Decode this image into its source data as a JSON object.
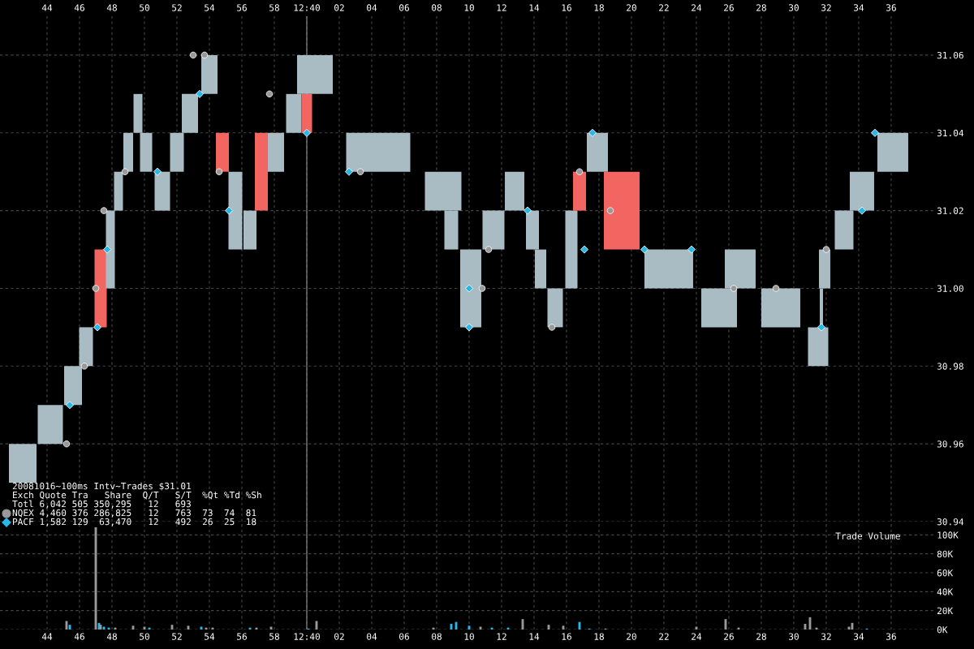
{
  "chart_data": [
    {
      "type": "bar",
      "annotations": [
        "20081016~100ms Intv~Trades $31.01",
        "Exch Quote Tra   Share  Q/T   S/T  %Qt %Td %Sh",
        "Totl 6,042 505 350,295   12   693",
        "4,460 376 286,825   12   763  73  74  81",
        "1,582 129  63,470   12   492  26  25  18"
      ],
      "series": [
        {
          "type": "bar",
          "x": [
            "2008-10-16T12:39:42.5",
            "2008-10-16T12:39:44.2",
            "2008-10-16T12:39:45.6",
            "2008-10-16T12:39:46.4",
            "2008-10-16T12:39:47.3",
            "2008-10-16T12:39:47.9",
            "2008-10-16T12:39:48.4",
            "2008-10-16T12:39:49.0",
            "2008-10-16T12:39:49.6",
            "2008-10-16T12:39:50.1",
            "2008-10-16T12:39:51.1",
            "2008-10-16T12:39:52.0",
            "2008-10-16T12:39:52.8",
            "2008-10-16T12:39:54.0",
            "2008-10-16T12:39:54.8",
            "2008-10-16T12:39:55.6",
            "2008-10-16T12:39:56.5",
            "2008-10-16T12:39:57.2",
            "2008-10-16T12:39:58.1",
            "2008-10-16T12:39:59.2",
            "2008-10-16T12:40:00.0",
            "2008-10-16T12:40:00.5",
            "2008-10-16T12:40:04.4",
            "2008-10-16T12:40:08.4",
            "2008-10-16T12:40:08.9",
            "2008-10-16T12:40:10.1",
            "2008-10-16T12:40:11.5",
            "2008-10-16T12:40:12.8",
            "2008-10-16T12:40:13.9",
            "2008-10-16T12:40:14.4",
            "2008-10-16T12:40:15.3",
            "2008-10-16T12:40:16.3",
            "2008-10-16T12:40:16.8",
            "2008-10-16T12:40:17.9",
            "2008-10-16T12:40:19.4",
            "2008-10-16T12:40:22.3",
            "2008-10-16T12:40:25.4",
            "2008-10-16T12:40:26.7",
            "2008-10-16T12:40:29.2",
            "2008-10-16T12:40:31.5",
            "2008-10-16T12:40:31.7",
            "2008-10-16T12:40:31.9",
            "2008-10-16T12:40:33.1",
            "2008-10-16T12:40:34.2",
            "2008-10-16T12:40:36.1"
          ],
          "base": [
            30.95,
            30.96,
            30.97,
            30.98,
            30.99,
            31.0,
            31.02,
            31.03,
            31.04,
            31.03,
            31.02,
            31.03,
            31.04,
            31.05,
            31.03,
            31.01,
            31.01,
            31.02,
            31.03,
            31.04,
            31.04,
            31.05,
            31.03,
            31.02,
            31.01,
            30.99,
            31.01,
            31.02,
            31.01,
            31.0,
            30.99,
            31.0,
            31.02,
            31.03,
            31.01,
            31.0,
            30.99,
            31.0,
            30.99,
            30.98,
            30.99,
            31.0,
            31.01,
            31.02,
            31.03
          ],
          "values": [
            0.01,
            0.01,
            0.01,
            0.01,
            0.02,
            0.02,
            0.01,
            0.01,
            0.01,
            0.01,
            0.01,
            0.01,
            0.01,
            0.01,
            0.01,
            0.02,
            0.01,
            0.02,
            0.01,
            0.01,
            0.01,
            0.01,
            0.01,
            0.01,
            0.01,
            0.02,
            0.01,
            0.01,
            0.01,
            0.01,
            0.01,
            0.02,
            0.01,
            0.01,
            0.02,
            0.01,
            0.01,
            0.01,
            0.01,
            0.01,
            0.01,
            0.01,
            0.01,
            0.01,
            0.01
          ],
          "colors": [
            "#a9bcc4",
            "#a9bcc4",
            "#a9bcc4",
            "#a9bcc4",
            "#f26560",
            "#a9bcc4",
            "#a9bcc4",
            "#a9bcc4",
            "#a9bcc4",
            "#a9bcc4",
            "#a9bcc4",
            "#a9bcc4",
            "#a9bcc4",
            "#a9bcc4",
            "#f26560",
            "#a9bcc4",
            "#a9bcc4",
            "#f26560",
            "#a9bcc4",
            "#a9bcc4",
            "#f26560",
            "#a9bcc4",
            "#a9bcc4",
            "#a9bcc4",
            "#a9bcc4",
            "#a9bcc4",
            "#a9bcc4",
            "#a9bcc4",
            "#a9bcc4",
            "#a9bcc4",
            "#a9bcc4",
            "#a9bcc4",
            "#f26560",
            "#a9bcc4",
            "#f26560",
            "#a9bcc4",
            "#a9bcc4",
            "#a9bcc4",
            "#a9bcc4",
            "#a9bcc4",
            "#a9bcc4",
            "#a9bcc4",
            "#a9bcc4",
            "#a9bcc4",
            "#a9bcc4"
          ]
        },
        {
          "type": "scatter",
          "name": "NQEX",
          "color": "#999999",
          "marker": "circle",
          "x": [
            "2008-10-16T12:39:45.2",
            "2008-10-16T12:39:46.3",
            "2008-10-16T12:39:47.0",
            "2008-10-16T12:39:47.5",
            "2008-10-16T12:39:48.8",
            "2008-10-16T12:39:53.0",
            "2008-10-16T12:39:53.7",
            "2008-10-16T12:39:54.6",
            "2008-10-16T12:39:57.7",
            "2008-10-16T12:40:03.3",
            "2008-10-16T12:40:10.8",
            "2008-10-16T12:40:11.2",
            "2008-10-16T12:40:15.1",
            "2008-10-16T12:40:16.8",
            "2008-10-16T12:40:18.7",
            "2008-10-16T12:40:26.3",
            "2008-10-16T12:40:28.9",
            "2008-10-16T12:40:32.0"
          ],
          "values": [
            30.96,
            30.98,
            31.0,
            31.02,
            31.03,
            31.06,
            31.06,
            31.03,
            31.05,
            31.03,
            31.0,
            31.01,
            30.99,
            31.03,
            31.02,
            31.0,
            31.0,
            31.01
          ]
        },
        {
          "type": "scatter",
          "name": "PACF",
          "color": "#29b6e8",
          "marker": "diamond",
          "x": [
            "2008-10-16T12:39:45.4",
            "2008-10-16T12:39:47.1",
            "2008-10-16T12:39:47.7",
            "2008-10-16T12:39:50.8",
            "2008-10-16T12:39:53.4",
            "2008-10-16T12:39:55.2",
            "2008-10-16T12:40:00.0",
            "2008-10-16T12:40:02.6",
            "2008-10-16T12:40:10.0",
            "2008-10-16T12:40:10.0",
            "2008-10-16T12:40:13.6",
            "2008-10-16T12:40:17.1",
            "2008-10-16T12:40:17.6",
            "2008-10-16T12:40:20.8",
            "2008-10-16T12:40:23.7",
            "2008-10-16T12:40:31.7",
            "2008-10-16T12:40:34.2",
            "2008-10-16T12:40:35.0"
          ],
          "values": [
            30.97,
            30.99,
            31.01,
            31.03,
            31.05,
            31.02,
            31.04,
            31.03,
            31.0,
            30.99,
            31.02,
            31.01,
            31.04,
            31.01,
            31.01,
            30.99,
            31.02,
            31.04
          ]
        }
      ],
      "xlim": [
        "2008-10-16T12:39:41.1",
        "2008-10-16T12:40:38.6"
      ],
      "ylim": [
        30.94,
        31.07
      ],
      "xticks": [
        {
          "value": "2008-10-16T12:39:44",
          "label": "44"
        },
        {
          "value": "2008-10-16T12:39:46",
          "label": "46"
        },
        {
          "value": "2008-10-16T12:39:48",
          "label": "48"
        },
        {
          "value": "2008-10-16T12:39:50",
          "label": "50"
        },
        {
          "value": "2008-10-16T12:39:52",
          "label": "52"
        },
        {
          "value": "2008-10-16T12:39:54",
          "label": "54"
        },
        {
          "value": "2008-10-16T12:39:56",
          "label": "56"
        },
        {
          "value": "2008-10-16T12:39:58",
          "label": "58"
        },
        {
          "value": "2008-10-16T12:40:00",
          "label": "12:40"
        },
        {
          "value": "2008-10-16T12:40:02",
          "label": "02"
        },
        {
          "value": "2008-10-16T12:40:04",
          "label": "04"
        },
        {
          "value": "2008-10-16T12:40:06",
          "label": "06"
        },
        {
          "value": "2008-10-16T12:40:08",
          "label": "08"
        },
        {
          "value": "2008-10-16T12:40:10",
          "label": "10"
        },
        {
          "value": "2008-10-16T12:40:12",
          "label": "12"
        },
        {
          "value": "2008-10-16T12:40:14",
          "label": "14"
        },
        {
          "value": "2008-10-16T12:40:16",
          "label": "16"
        },
        {
          "value": "2008-10-16T12:40:18",
          "label": "18"
        },
        {
          "value": "2008-10-16T12:40:20",
          "label": "20"
        },
        {
          "value": "2008-10-16T12:40:22",
          "label": "22"
        },
        {
          "value": "2008-10-16T12:40:24",
          "label": "24"
        },
        {
          "value": "2008-10-16T12:40:26",
          "label": "26"
        },
        {
          "value": "2008-10-16T12:40:28",
          "label": "28"
        },
        {
          "value": "2008-10-16T12:40:30",
          "label": "30"
        },
        {
          "value": "2008-10-16T12:40:32",
          "label": "32"
        },
        {
          "value": "2008-10-16T12:40:34",
          "label": "34"
        },
        {
          "value": "2008-10-16T12:40:36",
          "label": "36"
        }
      ],
      "yticks": [
        30.94,
        30.96,
        30.98,
        {
          "value": 31.0,
          "label": "31.00"
        },
        31.02,
        31.04,
        31.06
      ],
      "grid": true,
      "legend": "bottom left",
      "ref_lines": [
        {
          "axis": "x",
          "value": "2008-10-16T12:40:00",
          "color": "#777777"
        }
      ]
    },
    {
      "type": "bar",
      "title": "Trade Volume",
      "x": [
        "2008-10-16T12:39:45.2",
        "2008-10-16T12:39:45.4",
        "2008-10-16T12:39:47.0",
        "2008-10-16T12:39:47.2",
        "2008-10-16T12:39:47.3",
        "2008-10-16T12:39:47.5",
        "2008-10-16T12:39:47.8",
        "2008-10-16T12:39:48.2",
        "2008-10-16T12:39:49.3",
        "2008-10-16T12:39:50.0",
        "2008-10-16T12:39:50.3",
        "2008-10-16T12:39:51.7",
        "2008-10-16T12:39:52.7",
        "2008-10-16T12:39:53.5",
        "2008-10-16T12:39:53.8",
        "2008-10-16T12:39:54.2",
        "2008-10-16T12:39:56.5",
        "2008-10-16T12:39:56.9",
        "2008-10-16T12:39:57.8",
        "2008-10-16T12:40:00.1",
        "2008-10-16T12:40:00.6",
        "2008-10-16T12:40:07.8",
        "2008-10-16T12:40:08.9",
        "2008-10-16T12:40:09.2",
        "2008-10-16T12:40:10.0",
        "2008-10-16T12:40:10.7",
        "2008-10-16T12:40:11.4",
        "2008-10-16T12:40:12.4",
        "2008-10-16T12:40:13.3",
        "2008-10-16T12:40:14.9",
        "2008-10-16T12:40:15.8",
        "2008-10-16T12:40:16.8",
        "2008-10-16T12:40:17.4",
        "2008-10-16T12:40:18.4",
        "2008-10-16T12:40:24.0",
        "2008-10-16T12:40:25.8",
        "2008-10-16T12:40:26.6",
        "2008-10-16T12:40:30.7",
        "2008-10-16T12:40:31.0",
        "2008-10-16T12:40:31.4",
        "2008-10-16T12:40:33.4",
        "2008-10-16T12:40:33.6",
        "2008-10-16T12:40:34.5"
      ],
      "values": [
        9000,
        5000,
        108000,
        7000,
        5000,
        3000,
        2000,
        2000,
        4000,
        3000,
        2000,
        5000,
        4000,
        3000,
        2000,
        2000,
        2000,
        2000,
        3000,
        1000,
        9000,
        2000,
        6000,
        8000,
        4000,
        3000,
        2000,
        2000,
        11000,
        5000,
        4000,
        8000,
        1000,
        1000,
        3000,
        11000,
        2000,
        6000,
        13000,
        2000,
        3000,
        7000,
        1000
      ],
      "colors": [
        "#999999",
        "#29b6e8",
        "#999999",
        "#29b6e8",
        "#999999",
        "#29b6e8",
        "#29b6e8",
        "#999999",
        "#999999",
        "#999999",
        "#29b6e8",
        "#999999",
        "#999999",
        "#29b6e8",
        "#999999",
        "#999999",
        "#29b6e8",
        "#999999",
        "#999999",
        "#29b6e8",
        "#999999",
        "#999999",
        "#29b6e8",
        "#29b6e8",
        "#29b6e8",
        "#999999",
        "#29b6e8",
        "#29b6e8",
        "#999999",
        "#999999",
        "#999999",
        "#29b6e8",
        "#29b6e8",
        "#999999",
        "#999999",
        "#999999",
        "#999999",
        "#999999",
        "#999999",
        "#999999",
        "#999999",
        "#999999",
        "#29b6e8"
      ],
      "xlim": [
        "2008-10-16T12:39:41.1",
        "2008-10-16T12:40:38.6"
      ],
      "ylim": [
        0,
        114000
      ],
      "xticks": [
        {
          "value": "2008-10-16T12:39:44",
          "label": "44"
        },
        {
          "value": "2008-10-16T12:39:46",
          "label": "46"
        },
        {
          "value": "2008-10-16T12:39:48",
          "label": "48"
        },
        {
          "value": "2008-10-16T12:39:50",
          "label": "50"
        },
        {
          "value": "2008-10-16T12:39:52",
          "label": "52"
        },
        {
          "value": "2008-10-16T12:39:54",
          "label": "54"
        },
        {
          "value": "2008-10-16T12:39:56",
          "label": "56"
        },
        {
          "value": "2008-10-16T12:39:58",
          "label": "58"
        },
        {
          "value": "2008-10-16T12:40:00",
          "label": "12:40"
        },
        {
          "value": "2008-10-16T12:40:02",
          "label": "02"
        },
        {
          "value": "2008-10-16T12:40:04",
          "label": "04"
        },
        {
          "value": "2008-10-16T12:40:06",
          "label": "06"
        },
        {
          "value": "2008-10-16T12:40:08",
          "label": "08"
        },
        {
          "value": "2008-10-16T12:40:10",
          "label": "10"
        },
        {
          "value": "2008-10-16T12:40:12",
          "label": "12"
        },
        {
          "value": "2008-10-16T12:40:14",
          "label": "14"
        },
        {
          "value": "2008-10-16T12:40:16",
          "label": "16"
        },
        {
          "value": "2008-10-16T12:40:18",
          "label": "18"
        },
        {
          "value": "2008-10-16T12:40:20",
          "label": "20"
        },
        {
          "value": "2008-10-16T12:40:22",
          "label": "22"
        },
        {
          "value": "2008-10-16T12:40:24",
          "label": "24"
        },
        {
          "value": "2008-10-16T12:40:26",
          "label": "26"
        },
        {
          "value": "2008-10-16T12:40:28",
          "label": "28"
        },
        {
          "value": "2008-10-16T12:40:30",
          "label": "30"
        },
        {
          "value": "2008-10-16T12:40:32",
          "label": "32"
        },
        {
          "value": "2008-10-16T12:40:34",
          "label": "34"
        },
        {
          "value": "2008-10-16T12:40:36",
          "label": "36"
        }
      ],
      "yticks": [
        {
          "value": 0,
          "label": "0K"
        },
        {
          "value": 20000,
          "label": "20K"
        },
        {
          "value": 40000,
          "label": "40K"
        },
        {
          "value": 60000,
          "label": "60K"
        },
        {
          "value": 80000,
          "label": "80K"
        },
        {
          "value": 100000,
          "label": "100K"
        }
      ],
      "grid": true,
      "ref_lines": [
        {
          "axis": "x",
          "value": "2008-10-16T12:40:00",
          "color": "#777777"
        }
      ]
    }
  ]
}
